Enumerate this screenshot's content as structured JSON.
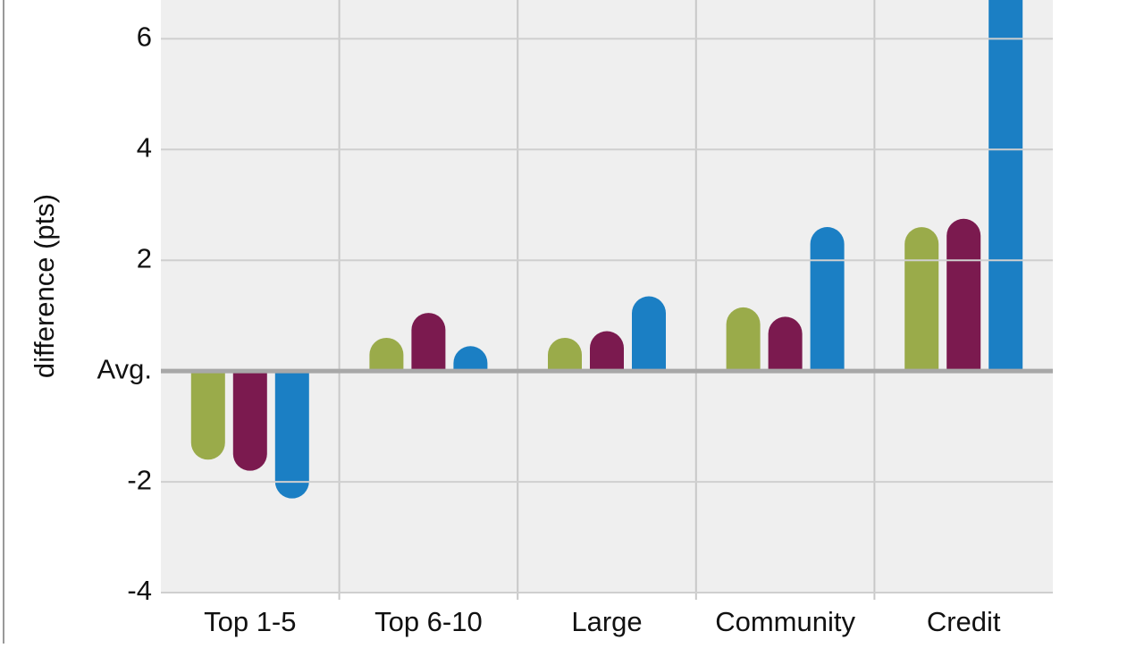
{
  "chart_data": {
    "type": "bar",
    "y_axis_label": "difference (pts)",
    "categories": [
      "Top 1-5",
      "Top 6-10",
      "Large",
      "Community",
      "Credit"
    ],
    "series": [
      {
        "color": "#9aab4a",
        "values": [
          -1.6,
          0.6,
          0.6,
          1.15,
          2.6
        ]
      },
      {
        "color": "#7b1a4f",
        "values": [
          -1.8,
          1.05,
          0.72,
          0.98,
          2.75
        ]
      },
      {
        "color": "#1b7fc4",
        "values": [
          -2.3,
          0.45,
          1.35,
          2.6,
          7
        ]
      }
    ],
    "ylim": [
      -4,
      6.7
    ],
    "yticks": [
      -4,
      -2,
      {
        "value": 0,
        "label": "Avg."
      },
      2,
      4,
      6
    ],
    "grid": true
  }
}
